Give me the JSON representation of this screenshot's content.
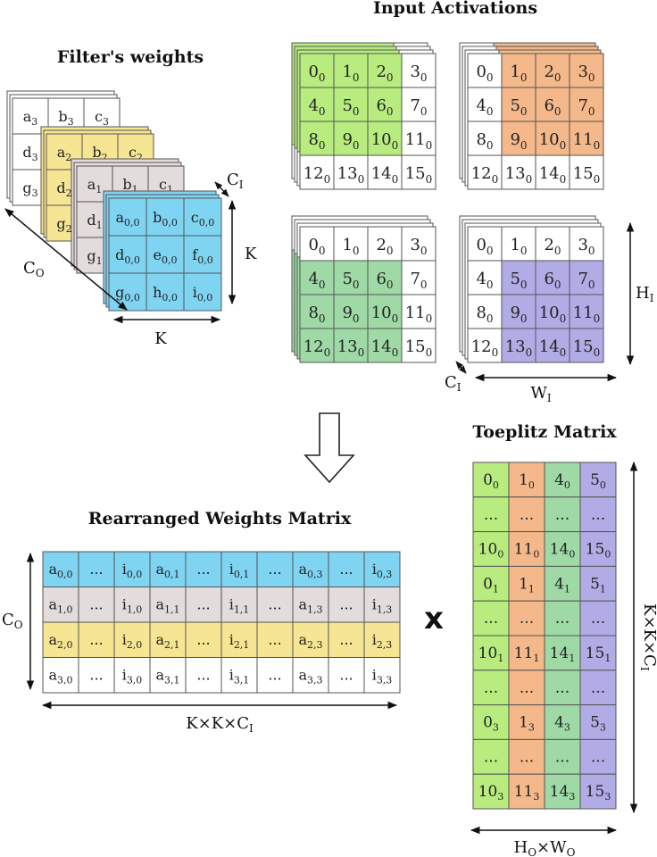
{
  "titles": {
    "input_activations": "Input Activations",
    "filters_weights": "Filter's weights",
    "toeplitz": "Toeplitz Matrix",
    "rearranged": "Rearranged Weights Matrix"
  },
  "labels": {
    "co": "C",
    "co_sub": "O",
    "ci": "C",
    "ci_sub": "I",
    "k": "K",
    "hi": "H",
    "hi_sub": "I",
    "wi": "W",
    "wi_sub": "I",
    "kkci": "K×K×C",
    "kkci_sub": "I",
    "howo": "H",
    "howo_sub1": "O",
    "howo_mid": "×W",
    "howo_sub2": "O",
    "multiply": "x"
  },
  "colors": {
    "green": "#b8ec7e",
    "orange": "#f4b88a",
    "teal": "#9fd9a6",
    "purple": "#b2ace6",
    "blue": "#7fd4f2",
    "gray": "#e2dcdc",
    "yellow": "#f6e592",
    "white": "#ffffff",
    "line": "#555555"
  },
  "activation_grid": {
    "values": [
      [
        "0",
        "1",
        "2",
        "3"
      ],
      [
        "4",
        "5",
        "6",
        "7"
      ],
      [
        "8",
        "9",
        "10",
        "11"
      ],
      [
        "12",
        "13",
        "14",
        "15"
      ]
    ],
    "sub": "0"
  },
  "activation_windows": [
    {
      "name": "top-left",
      "color": "green",
      "highlight": [
        0,
        0
      ]
    },
    {
      "name": "top-right",
      "color": "orange",
      "highlight": [
        0,
        1
      ]
    },
    {
      "name": "bottom-left",
      "color": "teal",
      "highlight": [
        1,
        0
      ]
    },
    {
      "name": "bottom-right",
      "color": "purple",
      "highlight": [
        1,
        1
      ]
    }
  ],
  "filters": {
    "back_layers": [
      {
        "color": "white",
        "sub": "3",
        "row_letters": [
          "a",
          "d",
          "g"
        ],
        "top_row": [
          "a",
          "b",
          "c"
        ]
      },
      {
        "color": "yellow",
        "sub": "2",
        "row_letters": [
          "a",
          "d",
          "g"
        ],
        "top_row": [
          "a",
          "b",
          "c"
        ]
      },
      {
        "color": "gray",
        "sub": "1",
        "row_letters": [
          "a",
          "d",
          "g"
        ],
        "top_row": [
          "a",
          "b",
          "c"
        ]
      }
    ],
    "front": {
      "color": "blue",
      "cells": [
        [
          "a",
          "b",
          "c"
        ],
        [
          "d",
          "e",
          "f"
        ],
        [
          "g",
          "h",
          "i"
        ]
      ],
      "sub": "0,0"
    }
  },
  "toeplitz": {
    "columns": [
      "green",
      "orange",
      "teal",
      "purple"
    ],
    "rows": [
      [
        {
          "m": "0",
          "s": "0"
        },
        {
          "m": "1",
          "s": "0"
        },
        {
          "m": "4",
          "s": "0"
        },
        {
          "m": "5",
          "s": "0"
        }
      ],
      [
        {
          "m": "...",
          "s": ""
        },
        {
          "m": "...",
          "s": ""
        },
        {
          "m": "...",
          "s": ""
        },
        {
          "m": "...",
          "s": ""
        }
      ],
      [
        {
          "m": "10",
          "s": "0"
        },
        {
          "m": "11",
          "s": "0"
        },
        {
          "m": "14",
          "s": "0"
        },
        {
          "m": "15",
          "s": "0"
        }
      ],
      [
        {
          "m": "0",
          "s": "1"
        },
        {
          "m": "1",
          "s": "1"
        },
        {
          "m": "4",
          "s": "1"
        },
        {
          "m": "5",
          "s": "1"
        }
      ],
      [
        {
          "m": "...",
          "s": ""
        },
        {
          "m": "...",
          "s": ""
        },
        {
          "m": "...",
          "s": ""
        },
        {
          "m": "...",
          "s": ""
        }
      ],
      [
        {
          "m": "10",
          "s": "1"
        },
        {
          "m": "11",
          "s": "1"
        },
        {
          "m": "14",
          "s": "1"
        },
        {
          "m": "15",
          "s": "1"
        }
      ],
      [
        {
          "m": "...",
          "s": ""
        },
        {
          "m": "...",
          "s": ""
        },
        {
          "m": "...",
          "s": ""
        },
        {
          "m": "...",
          "s": ""
        }
      ],
      [
        {
          "m": "0",
          "s": "3"
        },
        {
          "m": "1",
          "s": "3"
        },
        {
          "m": "4",
          "s": "3"
        },
        {
          "m": "5",
          "s": "3"
        }
      ],
      [
        {
          "m": "...",
          "s": ""
        },
        {
          "m": "...",
          "s": ""
        },
        {
          "m": "...",
          "s": ""
        },
        {
          "m": "...",
          "s": ""
        }
      ],
      [
        {
          "m": "10",
          "s": "3"
        },
        {
          "m": "11",
          "s": "3"
        },
        {
          "m": "14",
          "s": "3"
        },
        {
          "m": "15",
          "s": "3"
        }
      ]
    ]
  },
  "rearranged": {
    "row_colors": [
      "blue",
      "gray",
      "yellow",
      "white"
    ],
    "rows": [
      [
        {
          "m": "a",
          "s": "0,0"
        },
        {
          "m": "...",
          "s": ""
        },
        {
          "m": "i",
          "s": "0,0"
        },
        {
          "m": "a",
          "s": "0,1"
        },
        {
          "m": "...",
          "s": ""
        },
        {
          "m": "i",
          "s": "0,1"
        },
        {
          "m": "...",
          "s": ""
        },
        {
          "m": "a",
          "s": "0,3"
        },
        {
          "m": "...",
          "s": ""
        },
        {
          "m": "i",
          "s": "0,3"
        }
      ],
      [
        {
          "m": "a",
          "s": "1,0"
        },
        {
          "m": "...",
          "s": ""
        },
        {
          "m": "i",
          "s": "1,0"
        },
        {
          "m": "a",
          "s": "1,1"
        },
        {
          "m": "...",
          "s": ""
        },
        {
          "m": "i",
          "s": "1,1"
        },
        {
          "m": "...",
          "s": ""
        },
        {
          "m": "a",
          "s": "1,3"
        },
        {
          "m": "...",
          "s": ""
        },
        {
          "m": "i",
          "s": "1,3"
        }
      ],
      [
        {
          "m": "a",
          "s": "2,0"
        },
        {
          "m": "...",
          "s": ""
        },
        {
          "m": "i",
          "s": "2,0"
        },
        {
          "m": "a",
          "s": "2,1"
        },
        {
          "m": "...",
          "s": ""
        },
        {
          "m": "i",
          "s": "2,1"
        },
        {
          "m": "...",
          "s": ""
        },
        {
          "m": "a",
          "s": "2,3"
        },
        {
          "m": "...",
          "s": ""
        },
        {
          "m": "i",
          "s": "2,3"
        }
      ],
      [
        {
          "m": "a",
          "s": "3,0"
        },
        {
          "m": "...",
          "s": ""
        },
        {
          "m": "i",
          "s": "3,0"
        },
        {
          "m": "a",
          "s": "3,1"
        },
        {
          "m": "...",
          "s": ""
        },
        {
          "m": "i",
          "s": "3,1"
        },
        {
          "m": "...",
          "s": ""
        },
        {
          "m": "a",
          "s": "3,3"
        },
        {
          "m": "...",
          "s": ""
        },
        {
          "m": "i",
          "s": "3,3"
        }
      ]
    ]
  }
}
